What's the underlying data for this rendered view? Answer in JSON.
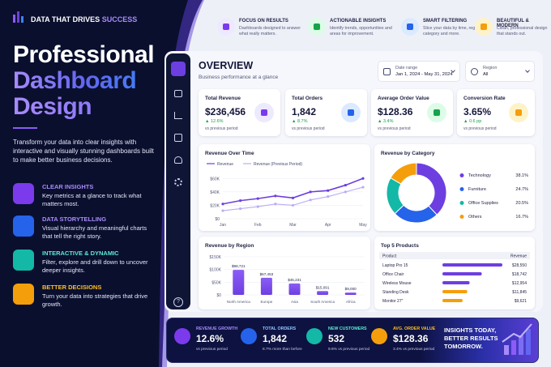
{
  "brand": {
    "text": "DATA THAT DRIVES",
    "accent": "SUCCESS"
  },
  "hero": {
    "title_line1": "Professional",
    "title_line2": "Dashboard",
    "title_line3": "Design",
    "description": "Transform your data into clear insights with interactive and visually stunning dashboards built to make better business decisions."
  },
  "features": [
    {
      "title": "CLEAR INSIGHTS",
      "text": "Key metrics at a glance to track what matters most."
    },
    {
      "title": "DATA STORYTELLING",
      "text": "Visual hierarchy and meaningful charts that tell the right story."
    },
    {
      "title": "INTERACTIVE & DYNAMIC",
      "text": "Filter, explore and drill down to uncover deeper insights."
    },
    {
      "title": "BETTER DECISIONS",
      "text": "Turn your data into strategies that drive growth."
    }
  ],
  "highlights": [
    {
      "title": "FOCUS ON RESULTS",
      "text": "Dashboards designed to answer what really matters."
    },
    {
      "title": "ACTIONABLE INSIGHTS",
      "text": "Identify trends, opportunities and areas for improvement."
    },
    {
      "title": "SMART FILTERING",
      "text": "Slice your data by time, region, category and more."
    },
    {
      "title": "BEAUTIFUL & MODERN",
      "text": "Clean, professional design that stands out."
    }
  ],
  "dashboard": {
    "title": "OVERVIEW",
    "subtitle": "Business performance at a glance",
    "filters": [
      {
        "label": "Date range",
        "value": "Jan 1, 2024 - May 31, 2024"
      },
      {
        "label": "Region",
        "value": "All"
      }
    ],
    "kpis": [
      {
        "label": "Total Revenue",
        "value": "$236,456",
        "change": "▲ 12.6%",
        "note": "vs previous period"
      },
      {
        "label": "Total Orders",
        "value": "1,842",
        "change": "▲ 8.7%",
        "note": "vs previous period"
      },
      {
        "label": "Average Order Value",
        "value": "$128.36",
        "change": "▲ 3.4%",
        "note": "vs previous period"
      },
      {
        "label": "Conversion Rate",
        "value": "3.65%",
        "change": "▲ 0.6 pp",
        "note": "vs previous period"
      }
    ],
    "line_chart": {
      "type": "line",
      "title": "Revenue Over Time",
      "x": [
        "Jan",
        null,
        "Feb",
        null,
        "Mar",
        null,
        "Apr",
        null,
        "May"
      ],
      "series": [
        {
          "name": "Revenue",
          "color": "#6d3fe0",
          "values": [
            22000,
            27000,
            30000,
            34000,
            31000,
            40000,
            42000,
            50000,
            60000
          ]
        },
        {
          "name": "Revenue (Previous Period)",
          "color": "#b9adf3",
          "values": [
            12000,
            15000,
            18000,
            22000,
            20000,
            28000,
            33000,
            40000,
            47000
          ]
        }
      ],
      "ylim": [
        0,
        70000
      ],
      "yticks": [
        {
          "value": 0,
          "label": "$0"
        },
        {
          "value": 20000,
          "label": "$20K"
        },
        {
          "value": 40000,
          "label": "$40K"
        },
        {
          "value": 60000,
          "label": "$60K"
        }
      ]
    },
    "donut": {
      "type": "pie",
      "title": "Revenue by Category",
      "categories": [
        "Technology",
        "Furniture",
        "Office Supplies",
        "Others"
      ],
      "values": [
        38.1,
        24.7,
        20.5,
        16.7
      ],
      "value_labels": [
        "38.1%",
        "24.7%",
        "20.5%",
        "16.7%"
      ],
      "colors": [
        "#6d3fe0",
        "#2563eb",
        "#14b8a6",
        "#f59e0b"
      ]
    },
    "bar_chart": {
      "type": "bar",
      "title": "Revenue by Region",
      "categories": [
        "North America",
        "Europe",
        "Asia",
        "South America",
        "Africa"
      ],
      "values": [
        98721,
        67453,
        45231,
        15091,
        9000
      ],
      "value_labels": [
        "$98,721",
        "$67,453",
        "$45,231",
        "$15,091",
        "$9,000"
      ],
      "color": "#6d3fe0",
      "ylim": [
        0,
        150000
      ],
      "yticks": [
        {
          "value": 0,
          "label": "$0"
        },
        {
          "value": 50000,
          "label": "$50K"
        },
        {
          "value": 100000,
          "label": "$100K"
        },
        {
          "value": 150000,
          "label": "$150K"
        }
      ]
    },
    "top_products": {
      "type": "bar",
      "title": "Top 5 Products",
      "columns": [
        "Product",
        "Revenue"
      ],
      "categories": [
        "Laptop Pro 15",
        "Office Chair",
        "Wireless Mouse",
        "Standing Desk",
        "Monitor 27\""
      ],
      "values": [
        28550,
        18742,
        12954,
        11845,
        9621
      ],
      "value_labels": [
        "$28,550",
        "$18,742",
        "$12,954",
        "$11,845",
        "$9,621"
      ],
      "colors": [
        "#6d3fe0",
        "#6d3fe0",
        "#6d3fe0",
        "#f59e0b",
        "#f59e0b"
      ]
    }
  },
  "footer": {
    "stats": [
      {
        "label": "REVENUE GROWTH",
        "value": "12.6%",
        "note": "vs previous period"
      },
      {
        "label": "TOTAL ORDERS",
        "value": "1,842",
        "note": "8.7% more than before"
      },
      {
        "label": "NEW CUSTOMERS",
        "value": "532",
        "note": "9.6% vs previous period"
      },
      {
        "label": "AVG. ORDER VALUE",
        "value": "$128.36",
        "note": "3.4% vs previous period"
      }
    ],
    "tagline": "INSIGHTS TODAY, BETTER RESULTS TOMORROW."
  }
}
